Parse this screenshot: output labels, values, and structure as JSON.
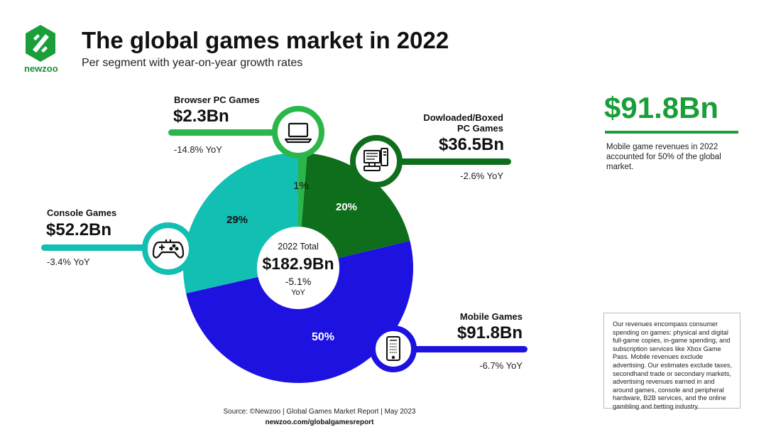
{
  "header": {
    "logo_text": "newzoo",
    "title": "The global games market in 2022",
    "subtitle": "Per segment with year-on-year growth rates"
  },
  "center": {
    "label": "2022 Total",
    "value": "$182.9Bn",
    "yoy": "-5.1%",
    "yoy_unit": "YoY"
  },
  "segments": {
    "browser": {
      "name": "Browser PC Games",
      "value": "$2.3Bn",
      "yoy": "-14.8% YoY",
      "pct_label": "1%",
      "icon": "laptop-icon"
    },
    "downloaded": {
      "name_line1": "Dowloaded/Boxed",
      "name_line2": "PC Games",
      "value": "$36.5Bn",
      "yoy": "-2.6% YoY",
      "pct_label": "20%",
      "icon": "desktop-computer-icon"
    },
    "console": {
      "name": "Console Games",
      "value": "$52.2Bn",
      "yoy": "-3.4% YoY",
      "pct_label": "29%",
      "icon": "gamepad-icon"
    },
    "mobile": {
      "name": "Mobile Games",
      "value": "$91.8Bn",
      "yoy": "-6.7% YoY",
      "pct_label": "50%",
      "icon": "smartphone-icon"
    }
  },
  "mobile_highlight": {
    "value": "$91.8Bn",
    "note": "Mobile game revenues in 2022 accounted for 50% of the global market."
  },
  "disclaimer": "Our revenues encompass consumer spending on games: physical and digital full-game copies, in-game spending, and subscription services like Xbox Game Pass. Mobile revenues exclude advertising. Our estimates exclude taxes, secondhand trade or secondary markets, advertising revenues earned in and around games, console and peripheral hardware, B2B services, and the online gambling and betting industry.",
  "source": "Source: ©Newzoo | Global Games Market Report | May 2023",
  "source_url": "newzoo.com/globalgamesreport",
  "colors": {
    "browser": "#2bb64a",
    "downloaded": "#0f6e1c",
    "mobile": "#1d12e0",
    "console": "#12bfb3",
    "brand_green": "#1a9e3a"
  },
  "chart_data": {
    "type": "pie",
    "title": "The global games market in 2022",
    "subtitle": "Per segment with year-on-year growth rates",
    "categories": [
      "Browser PC Games",
      "Dowloaded/Boxed PC Games",
      "Mobile Games",
      "Console Games"
    ],
    "values": [
      2.3,
      36.5,
      91.8,
      52.2
    ],
    "value_unit": "$Bn",
    "yoy_growth_percent": [
      -14.8,
      -2.6,
      -6.7,
      -3.4
    ],
    "share_labels": [
      "1%",
      "20%",
      "50%",
      "29%"
    ],
    "total": 182.9,
    "total_yoy_percent": -5.1,
    "donut": true
  }
}
